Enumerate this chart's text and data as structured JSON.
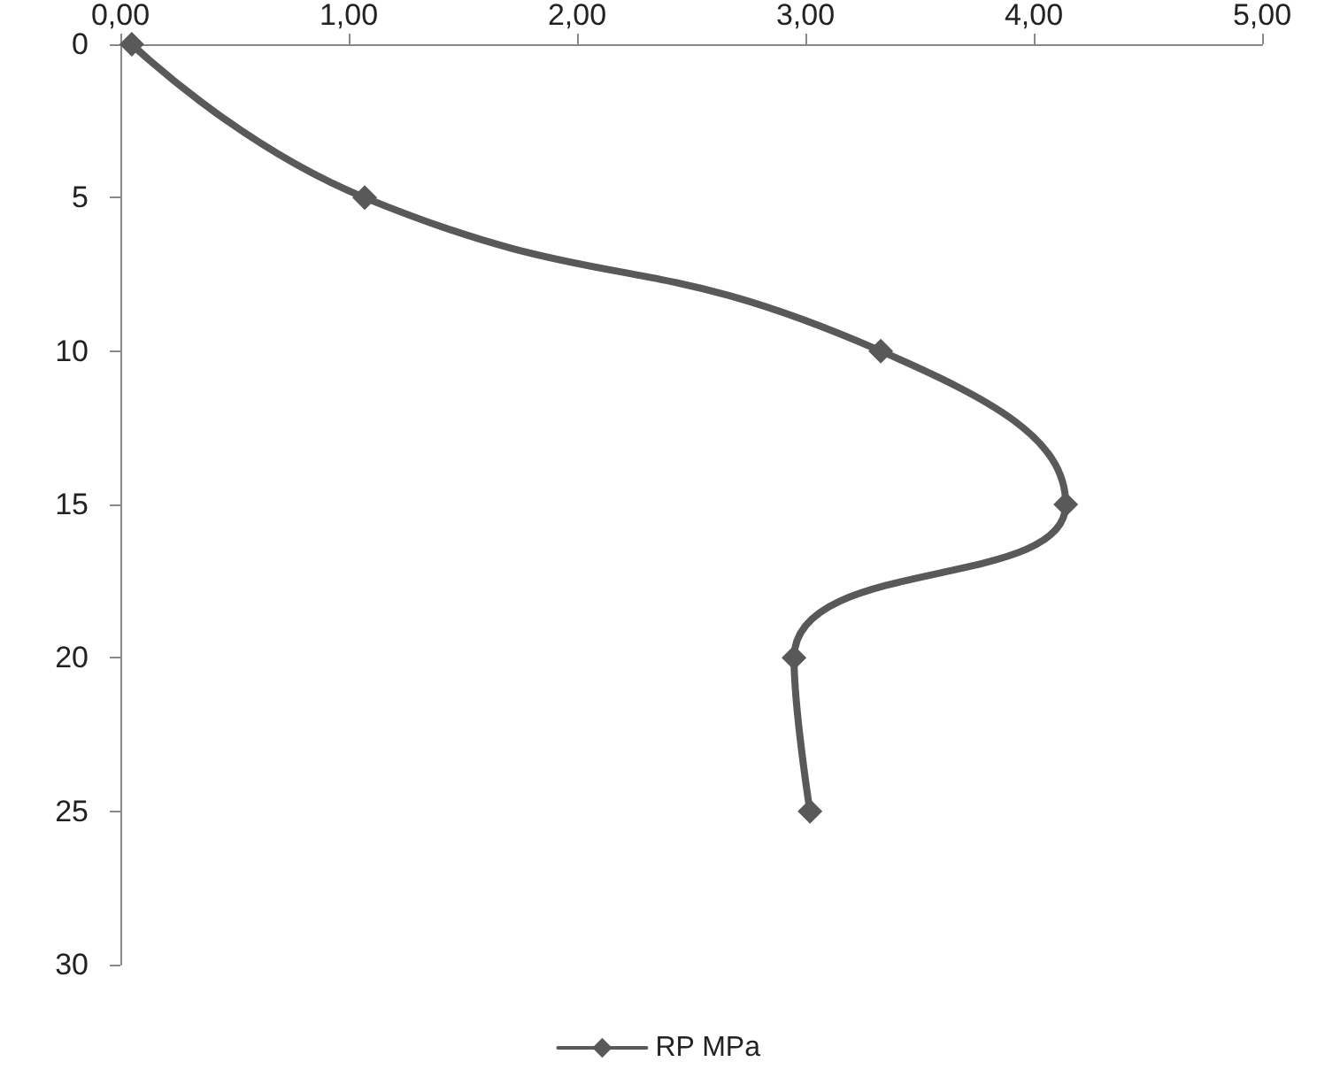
{
  "chart_data": {
    "type": "line",
    "x": [
      0.05,
      1.07,
      3.33,
      4.14,
      2.95,
      3.02
    ],
    "series": [
      {
        "name": "RP MPa",
        "color": "#595959",
        "values": [
          0,
          5,
          10,
          15,
          20,
          25
        ]
      }
    ],
    "xlim": [
      0,
      5
    ],
    "xticks": [
      {
        "value": 0,
        "label": "0,00"
      },
      {
        "value": 1,
        "label": "1,00"
      },
      {
        "value": 2,
        "label": "2,00"
      },
      {
        "value": 3,
        "label": "3,00"
      },
      {
        "value": 4,
        "label": "4,00"
      },
      {
        "value": 5,
        "label": "5,00"
      }
    ],
    "ylim": [
      30,
      0
    ],
    "yticks": [
      0,
      5,
      10,
      15,
      20,
      25,
      30
    ],
    "marker": "diamond",
    "line_style": "solid",
    "grid": false,
    "legend": "bottom"
  }
}
